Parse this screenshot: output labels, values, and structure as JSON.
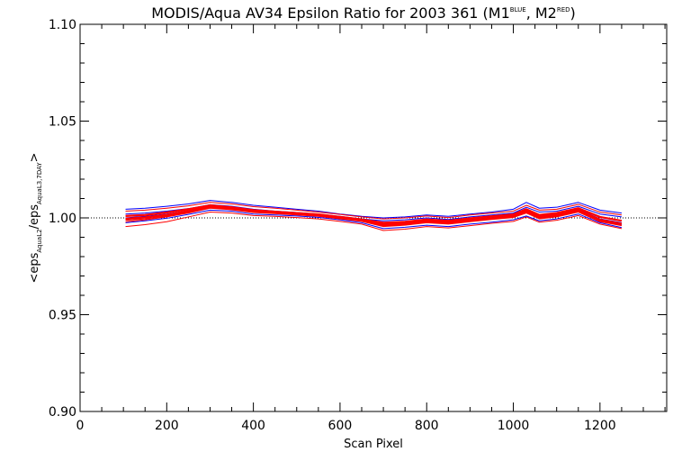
{
  "title": {
    "main": "MODIS/Aqua AV34 Epsilon Ratio for 2003 361 (M1",
    "sup1": "BLUE",
    "mid": ", M2",
    "sup2": "RED",
    "end": ")"
  },
  "ylabel": {
    "open": "<eps",
    "sub1": "AquaL2",
    "slash": "/eps",
    "sub2": "AquaL3,7DAY",
    "close": ">"
  },
  "colors": {
    "m1": "#0000ff",
    "m2": "#ff0000",
    "axis": "#000000",
    "reference": "#000000"
  },
  "chart_data": {
    "type": "line",
    "xlabel": "Scan Pixel",
    "xlim": [
      0,
      1354
    ],
    "ylim": [
      0.9,
      1.1
    ],
    "x_ticks": [
      0,
      200,
      400,
      600,
      800,
      1000,
      1200
    ],
    "x_tick_labels": [
      "0",
      "200",
      "400",
      "600",
      "800",
      "1000",
      "1200"
    ],
    "y_ticks": [
      0.9,
      0.95,
      1.0,
      1.05,
      1.1
    ],
    "y_tick_labels": [
      "0.90",
      "0.95",
      "1.00",
      "1.05",
      "1.10"
    ],
    "reference_line": 1.0,
    "grid": false,
    "x": [
      105,
      150,
      200,
      250,
      300,
      350,
      400,
      450,
      500,
      550,
      600,
      650,
      700,
      750,
      800,
      850,
      900,
      950,
      1000,
      1030,
      1060,
      1100,
      1150,
      1200,
      1250
    ],
    "series": [
      {
        "group": "m1",
        "values": [
          0.9992,
          1.0,
          1.0012,
          1.003,
          1.0055,
          1.0045,
          1.003,
          1.0025,
          1.0018,
          1.0012,
          0.9998,
          0.9985,
          0.996,
          0.9968,
          0.998,
          0.9972,
          0.9985,
          0.9995,
          1.0005,
          1.003,
          1.0,
          1.001,
          1.0035,
          0.9985,
          0.9965
        ]
      },
      {
        "group": "m1",
        "values": [
          1.002,
          1.0025,
          1.0035,
          1.0048,
          1.0068,
          1.006,
          1.0045,
          1.0035,
          1.0028,
          1.002,
          1.0008,
          0.9995,
          0.9985,
          0.999,
          1.0,
          0.9992,
          1.0005,
          1.0015,
          1.0025,
          1.0055,
          1.003,
          1.0035,
          1.006,
          1.002,
          1.0005
        ]
      },
      {
        "group": "m1",
        "values": [
          0.9975,
          0.9985,
          0.9998,
          1.0018,
          1.004,
          1.0035,
          1.002,
          1.0015,
          1.001,
          1.0003,
          0.999,
          0.9975,
          0.9945,
          0.9952,
          0.9962,
          0.9955,
          0.9968,
          0.9978,
          0.999,
          1.001,
          0.9985,
          0.9995,
          1.002,
          0.9975,
          0.995
        ]
      },
      {
        "group": "m1",
        "values": [
          1.0045,
          1.005,
          1.006,
          1.0072,
          1.009,
          1.008,
          1.0065,
          1.0055,
          1.0045,
          1.0035,
          1.002,
          1.0008,
          1.0,
          1.0005,
          1.0015,
          1.0008,
          1.002,
          1.003,
          1.0045,
          1.008,
          1.005,
          1.0055,
          1.008,
          1.004,
          1.0025
        ]
      },
      {
        "group": "m1",
        "values": [
          1.0,
          1.0008,
          1.002,
          1.0038,
          1.006,
          1.005,
          1.0036,
          1.003,
          1.0022,
          1.0015,
          1.0002,
          0.999,
          0.997,
          0.9975,
          0.9988,
          0.998,
          0.9992,
          1.0002,
          1.0012,
          1.004,
          1.001,
          1.002,
          1.0045,
          0.9995,
          0.9975
        ]
      },
      {
        "group": "m2",
        "values": [
          0.998,
          0.999,
          1.0005,
          1.0025,
          1.005,
          1.0042,
          1.0028,
          1.0022,
          1.0015,
          1.0008,
          0.9995,
          0.9982,
          0.9955,
          0.9962,
          0.9975,
          0.9968,
          0.998,
          0.9992,
          1.0002,
          1.0025,
          0.9995,
          1.0005,
          1.003,
          0.998,
          0.996
        ]
      },
      {
        "group": "m2",
        "values": [
          0.9995,
          1.0002,
          1.0015,
          1.0035,
          1.0058,
          1.0048,
          1.0032,
          1.0026,
          1.002,
          1.0012,
          1.0,
          0.9988,
          0.9965,
          0.997,
          0.9982,
          0.9975,
          0.9988,
          0.9998,
          1.0008,
          1.0035,
          1.0005,
          1.0015,
          1.004,
          0.999,
          0.997
        ]
      },
      {
        "group": "m2",
        "values": [
          1.0035,
          1.004,
          1.005,
          1.0062,
          1.008,
          1.0072,
          1.0058,
          1.005,
          1.004,
          1.003,
          1.0018,
          1.0005,
          0.9995,
          1.0,
          1.001,
          1.0002,
          1.0015,
          1.0025,
          1.0035,
          1.0065,
          1.004,
          1.0045,
          1.007,
          1.003,
          1.0015
        ]
      },
      {
        "group": "m2",
        "values": [
          0.9955,
          0.9965,
          0.998,
          1.0005,
          1.003,
          1.0025,
          1.0012,
          1.0008,
          1.0002,
          0.9995,
          0.9982,
          0.9968,
          0.9935,
          0.9942,
          0.9955,
          0.9948,
          0.996,
          0.9972,
          0.9982,
          1.0005,
          0.9978,
          0.9988,
          1.0012,
          0.9968,
          0.9945
        ]
      },
      {
        "group": "m2",
        "values": [
          1.001,
          1.0015,
          1.0028,
          1.0045,
          1.0065,
          1.0055,
          1.004,
          1.0032,
          1.0025,
          1.0018,
          1.0005,
          0.9992,
          0.9975,
          0.998,
          0.9992,
          0.9985,
          0.9998,
          1.0008,
          1.0018,
          1.0045,
          1.0015,
          1.0025,
          1.005,
          1.0005,
          0.9985
        ]
      },
      {
        "group": "m2",
        "values": [
          0.9988,
          0.9995,
          1.0008,
          1.0028,
          1.0052,
          1.0044,
          1.003,
          1.0024,
          1.0017,
          1.001,
          0.9997,
          0.9984,
          0.9958,
          0.9965,
          0.9978,
          0.997,
          0.9983,
          0.9994,
          1.0004,
          1.0028,
          0.9998,
          1.0008,
          1.0034,
          0.9983,
          0.9962
        ]
      },
      {
        "group": "m2",
        "values": [
          0.9998,
          1.0005,
          1.0018,
          1.0038,
          1.006,
          1.005,
          1.0035,
          1.0028,
          1.0021,
          1.0014,
          1.0001,
          0.9989,
          0.9968,
          0.9973,
          0.9985,
          0.9977,
          0.999,
          1.0,
          1.001,
          1.0038,
          1.0008,
          1.0018,
          1.0042,
          0.9993,
          0.9972
        ]
      }
    ]
  }
}
